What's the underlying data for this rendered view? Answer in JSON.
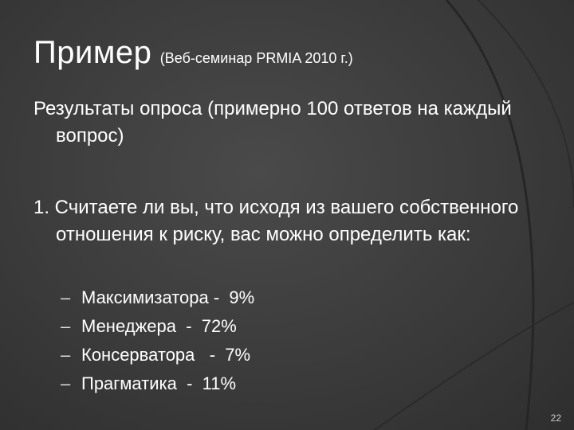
{
  "slide": {
    "title": "Пример",
    "subtitle": "(Веб-семинар PRMIA 2010  г.)",
    "intro": "Результаты опроса (примерно 100 ответов на каждый вопрос)",
    "question": "1.  Считаете ли вы, что исходя из вашего собственного отношения к риску, вас можно определить как:",
    "options": [
      "Максимизатора -  9%",
      "Менеджера  -  72%",
      "Консерватора   -  7%",
      "Прагматика  -  11%"
    ],
    "page_number": "22"
  }
}
